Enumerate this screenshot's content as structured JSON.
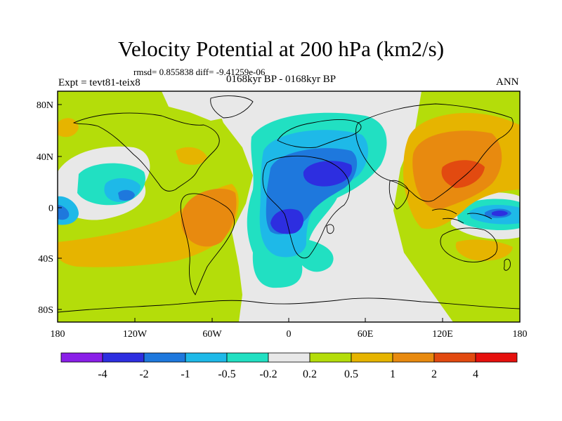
{
  "title": "Velocity Potential at 200 hPa (km2/s)",
  "stats": "rmsd= 0.855838 diff= -9.41259e-06",
  "expt": "Expt = tevt81-teix8",
  "period": "0168kyr BP - 0168kyr BP",
  "season": "ANN",
  "axes": {
    "lat_labels": [
      "80N",
      "40N",
      "0",
      "40S",
      "80S"
    ],
    "lon_labels": [
      "180",
      "120W",
      "60W",
      "0",
      "60E",
      "120E",
      "180"
    ]
  },
  "colorbar": {
    "labels": [
      "-4",
      "-2",
      "-1",
      "-0.5",
      "-0.2",
      "0.2",
      "0.5",
      "1",
      "2",
      "4"
    ],
    "colors": [
      "#8a1fe8",
      "#2d2ee0",
      "#1e78dd",
      "#1eb9e8",
      "#21e0c2",
      "#e8e8e8",
      "#b4dd0a",
      "#e6b400",
      "#e88a0f",
      "#e24a10",
      "#e6100d"
    ]
  }
}
